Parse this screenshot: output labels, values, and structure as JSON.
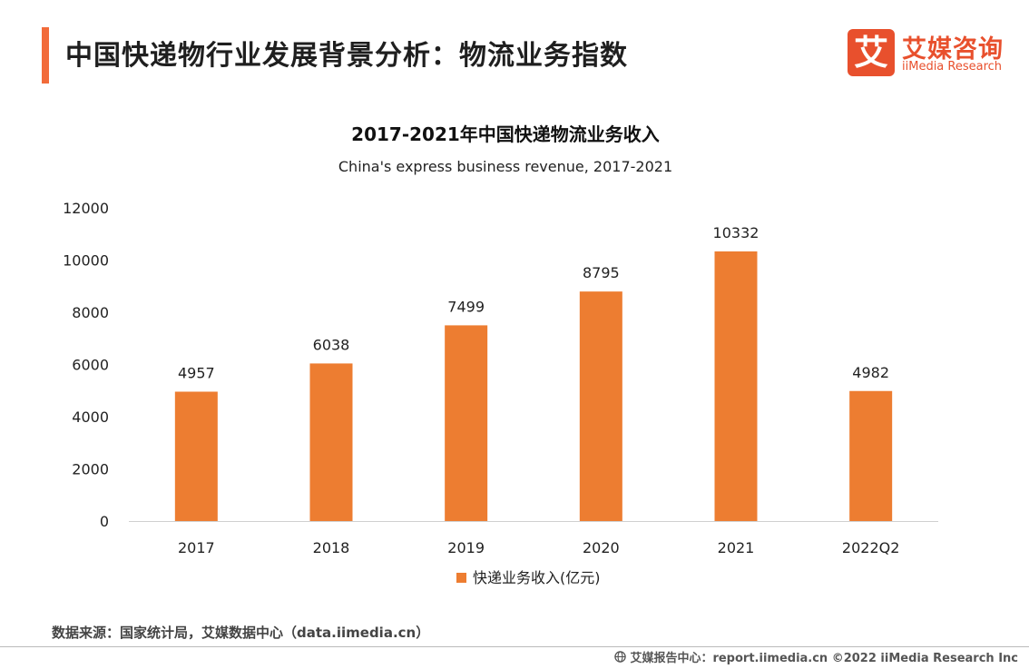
{
  "header": {
    "title": "中国快递物行业发展背景分析：物流业务指数",
    "accent_color": "#F26B3A"
  },
  "logo": {
    "mark": "艾",
    "name_cn": "艾媒咨询",
    "name_en": "iiMedia Research",
    "color": "#E8502D"
  },
  "chart_data": {
    "type": "bar",
    "title": "2017-2021年中国快递物流业务收入",
    "subtitle": "China's express business revenue, 2017-2021",
    "categories": [
      "2017",
      "2018",
      "2019",
      "2020",
      "2021",
      "2022Q2"
    ],
    "series": [
      {
        "name": "快递业务收入(亿元)",
        "values": [
          4957,
          6038,
          7499,
          8795,
          10332,
          4982
        ],
        "color": "#ED7D31"
      }
    ],
    "ylim": [
      0,
      12000
    ],
    "yticks": [
      0,
      2000,
      4000,
      6000,
      8000,
      10000,
      12000
    ],
    "xlabel": "",
    "ylabel": "",
    "grid": false,
    "legend": "bottom-center",
    "data_labels": true
  },
  "source": "数据来源：国家统计局，艾媒数据中心（data.iimedia.cn）",
  "footer": {
    "icon": "globe-icon",
    "text": "艾媒报告中心：report.iimedia.cn  ©2022  iiMedia Research  Inc"
  }
}
